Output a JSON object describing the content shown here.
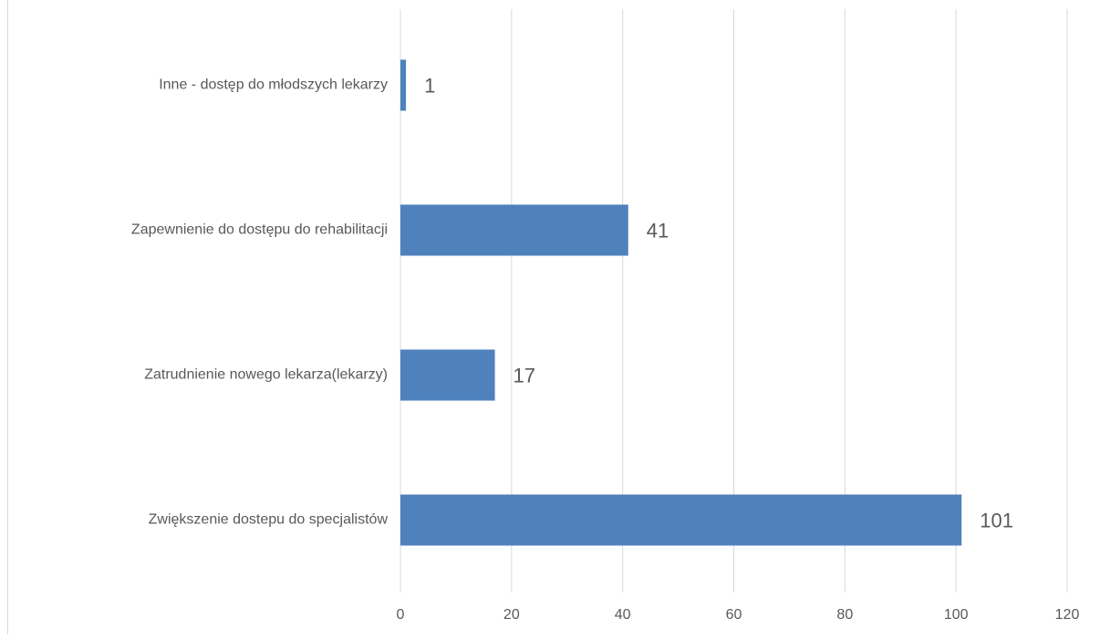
{
  "chart_data": {
    "type": "bar",
    "orientation": "horizontal",
    "categories": [
      "Inne - dostęp do młodszych lekarzy",
      "Zapewnienie do dostępu do rehabilitacji",
      "Zatrudnienie nowego lekarza(lekarzy)",
      "Zwiększenie dostepu do specjalistów"
    ],
    "values": [
      1,
      41,
      17,
      101
    ],
    "color": "#4f81bd",
    "xlim": [
      0,
      120
    ],
    "xticks": [
      0,
      20,
      40,
      60,
      80,
      100,
      120
    ],
    "grid": true
  }
}
